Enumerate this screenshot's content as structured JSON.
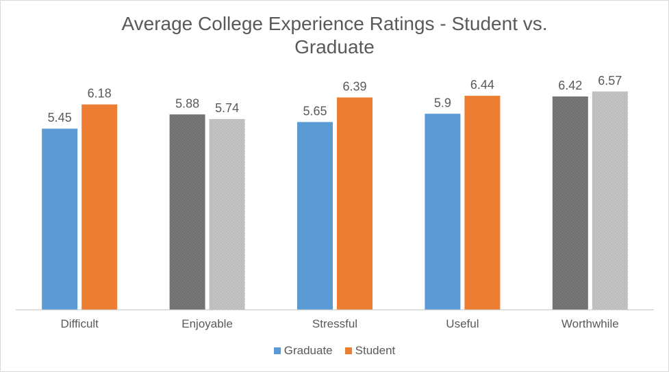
{
  "chart_data": {
    "type": "bar",
    "title_lines": [
      "Average College Experience Ratings - Student vs.",
      "Graduate"
    ],
    "categories": [
      "Difficult",
      "Enjoyable",
      "Stressful",
      "Useful",
      "Worthwhile"
    ],
    "series": [
      {
        "name": "Graduate",
        "values": [
          5.45,
          5.88,
          5.65,
          5.9,
          6.42
        ],
        "labels": [
          "5.45",
          "5.88",
          "5.65",
          "5.9",
          "6.42"
        ]
      },
      {
        "name": "Student",
        "values": [
          6.18,
          5.74,
          6.39,
          6.44,
          6.57
        ],
        "labels": [
          "6.18",
          "5.74",
          "6.39",
          "6.44",
          "6.57"
        ]
      }
    ],
    "ylim": [
      0,
      7.1
    ],
    "grid": false,
    "legend_position": "bottom",
    "colors": {
      "graduate": "#5b9bd5",
      "student": "#ed7d31",
      "graduate_alt": "#767676",
      "student_alt": "#c3c3c3",
      "text": "#595959",
      "axis": "#bfbfbf"
    },
    "alt_color_categories": [
      "Enjoyable",
      "Worthwhile"
    ]
  }
}
